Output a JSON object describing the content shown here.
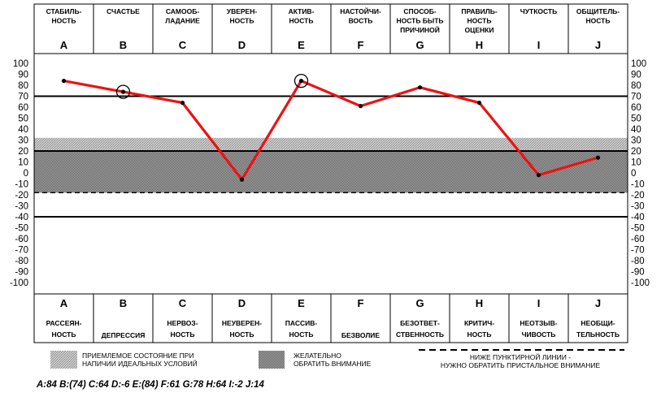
{
  "chart_data": {
    "type": "line",
    "categories": [
      "A",
      "B",
      "C",
      "D",
      "E",
      "F",
      "G",
      "H",
      "I",
      "J"
    ],
    "top_labels": [
      [
        "СТАБИЛЬ-",
        "НОСТЬ"
      ],
      [
        "СЧАСТЬЕ"
      ],
      [
        "САМООБ-",
        "ЛАДАНИЕ"
      ],
      [
        "УВЕРЕН-",
        "НОСТЬ"
      ],
      [
        "АКТИВ-",
        "НОСТЬ"
      ],
      [
        "НАСТОЙЧИ-",
        "ВОСТЬ"
      ],
      [
        "СПОСОБ-",
        "НОСТЬ БЫТЬ",
        "ПРИЧИНОЙ"
      ],
      [
        "ПРАВИЛЬ-",
        "НОСТЬ",
        "ОЦЕНКИ"
      ],
      [
        "ЧУТКОСТЬ"
      ],
      [
        "ОБЩИТЕЛЬ-",
        "НОСТЬ"
      ]
    ],
    "bottom_labels": [
      [
        "РАССЕЯН-",
        "НОСТЬ"
      ],
      [
        "ДЕПРЕССИЯ"
      ],
      [
        "НЕРВОЗ-",
        "НОСТЬ"
      ],
      [
        "НЕУВЕРЕН-",
        "НОСТЬ"
      ],
      [
        "ПАССИВ-",
        "НОСТЬ"
      ],
      [
        "БЕЗВОЛИЕ"
      ],
      [
        "БЕЗОТВЕТ-",
        "СТВЕННОСТЬ"
      ],
      [
        "КРИТИЧ-",
        "НОСТЬ"
      ],
      [
        "НЕОТЗЫВ-",
        "ЧИВОСТЬ"
      ],
      [
        "НЕОБЩИ-",
        "ТЕЛЬНОСТЬ"
      ]
    ],
    "values": [
      84,
      74,
      64,
      -6,
      84,
      61,
      78,
      64,
      -2,
      14
    ],
    "circled": [
      "B",
      "E"
    ],
    "ylim": [
      -100,
      100
    ],
    "yticks": [
      100,
      90,
      80,
      70,
      60,
      50,
      40,
      30,
      20,
      10,
      0,
      -10,
      -20,
      -30,
      -40,
      -50,
      -60,
      -70,
      -80,
      -90,
      -100
    ],
    "solid_lines": [
      70,
      20,
      -40
    ],
    "acceptable_band": [
      -18,
      32
    ],
    "attention_band": [
      -18,
      20
    ],
    "dashed_line": -18,
    "line_color": "#ee1111"
  },
  "legend": {
    "acceptable": [
      "ПРИЕМЛЕМОЕ СОСТОЯНИЕ ПРИ",
      "НАПИЧИИ ИДЕАЛЬНЫХ УСЛОВИЙ"
    ],
    "attention": [
      "ЖЕЛАТЕЛЬНО",
      "ОБРАТИТЬ ВНИМАНИЕ"
    ],
    "dashed": [
      "НИЖЕ ПУНКТИРНОЙ ЛИНИИ -",
      "НУЖНО ОБРАТИТЬ ПРИСТАЛЬНОЕ ВНИМАНИЕ"
    ]
  },
  "scores_text": "A:84   B:(74)   C:64   D:-6   E:(84)   F:61   G:78   H:64   I:-2   J:14"
}
